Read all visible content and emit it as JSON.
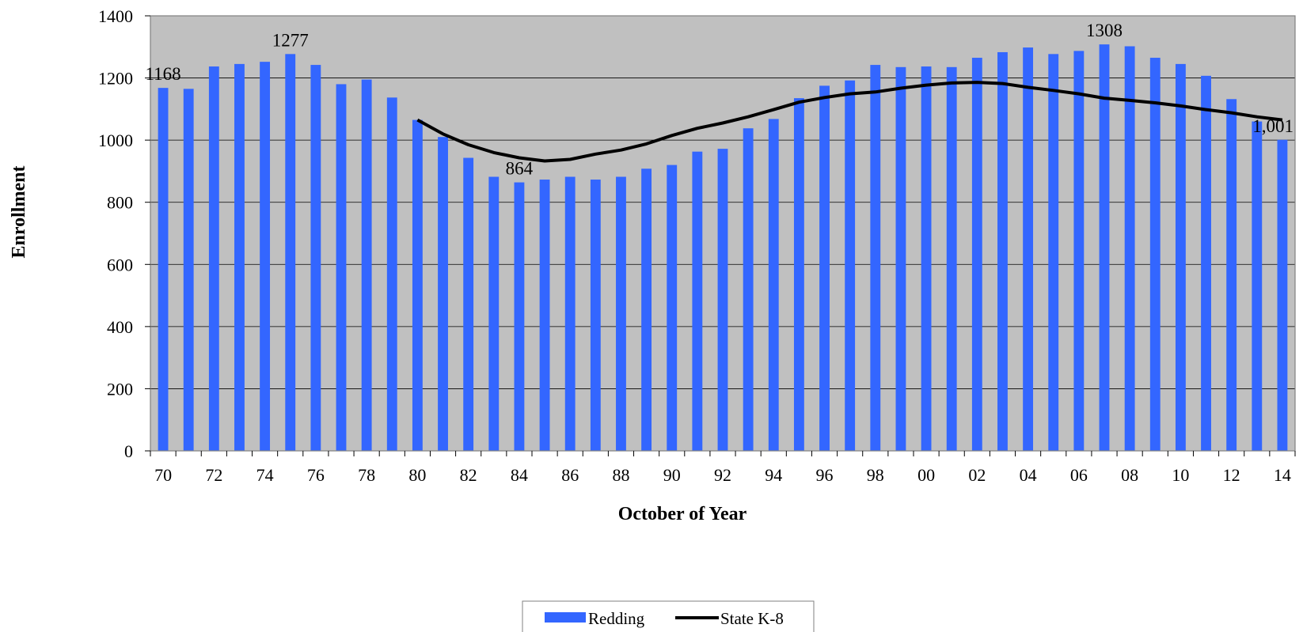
{
  "chart_data": {
    "type": "bar",
    "title": "",
    "xlabel": "October of Year",
    "ylabel": "Enrollment",
    "ylim": [
      0,
      1400
    ],
    "yticks": [
      0,
      200,
      400,
      600,
      800,
      1000,
      1200,
      1400
    ],
    "grid": true,
    "legend_position": "bottom-center",
    "colors": {
      "bar": "#3366FF",
      "line": "#000000",
      "plot_bg": "#C0C0C0"
    },
    "categories": [
      "70",
      "71",
      "72",
      "73",
      "74",
      "75",
      "76",
      "77",
      "78",
      "79",
      "80",
      "81",
      "82",
      "83",
      "84",
      "85",
      "86",
      "87",
      "88",
      "89",
      "90",
      "91",
      "92",
      "93",
      "94",
      "95",
      "96",
      "97",
      "98",
      "99",
      "00",
      "01",
      "02",
      "03",
      "04",
      "05",
      "06",
      "07",
      "08",
      "09",
      "10",
      "11",
      "12",
      "13",
      "14"
    ],
    "tick_labels": [
      "70",
      "72",
      "74",
      "76",
      "78",
      "80",
      "82",
      "84",
      "86",
      "88",
      "90",
      "92",
      "94",
      "96",
      "98",
      "00",
      "02",
      "04",
      "06",
      "08",
      "10",
      "12",
      "14"
    ],
    "series": [
      {
        "name": "Redding",
        "kind": "bar",
        "values": [
          1168,
          1165,
          1237,
          1245,
          1252,
          1277,
          1242,
          1180,
          1195,
          1137,
          1065,
          1010,
          943,
          882,
          864,
          873,
          882,
          873,
          882,
          908,
          920,
          963,
          972,
          1038,
          1068,
          1135,
          1175,
          1192,
          1242,
          1235,
          1237,
          1235,
          1265,
          1283,
          1298,
          1277,
          1287,
          1308,
          1302,
          1265,
          1245,
          1207,
          1132,
          1060,
          1001
        ]
      },
      {
        "name": "State K-8",
        "kind": "line",
        "values": [
          null,
          null,
          null,
          null,
          null,
          null,
          null,
          null,
          null,
          null,
          1065,
          1020,
          985,
          960,
          943,
          933,
          938,
          955,
          968,
          988,
          1015,
          1038,
          1055,
          1075,
          1098,
          1122,
          1137,
          1149,
          1155,
          1167,
          1177,
          1184,
          1186,
          1182,
          1170,
          1160,
          1149,
          1135,
          1128,
          1120,
          1110,
          1098,
          1088,
          1075,
          1065
        ]
      }
    ],
    "data_labels": [
      {
        "index": 0,
        "text": "1168"
      },
      {
        "index": 5,
        "text": "1277"
      },
      {
        "index": 14,
        "text": "864"
      },
      {
        "index": 37,
        "text": "1308"
      },
      {
        "index": 44,
        "text": "1,001"
      }
    ]
  }
}
